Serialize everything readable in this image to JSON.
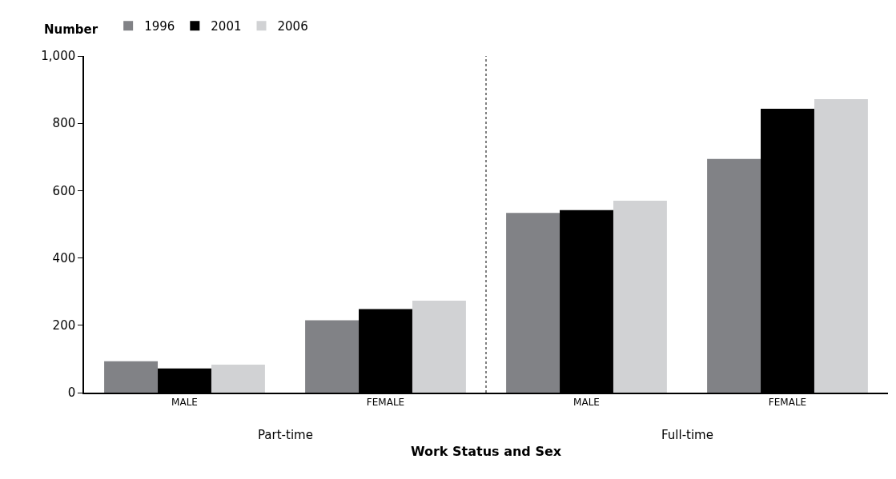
{
  "chart_data": {
    "type": "bar",
    "ylabel": "Number",
    "xlabel": "Work Status and Sex",
    "categories": [
      "MALE",
      "FEMALE",
      "MALE",
      "FEMALE"
    ],
    "series": [
      {
        "name": "1996",
        "color": "#818286",
        "values": [
          93,
          215,
          534,
          694
        ]
      },
      {
        "name": "2001",
        "color": "#000000",
        "values": [
          72,
          248,
          542,
          843
        ]
      },
      {
        "name": "2006",
        "color": "#d1d2d4",
        "values": [
          83,
          273,
          570,
          872
        ]
      }
    ],
    "ylim": [
      0,
      1000
    ],
    "yticks": [
      0,
      200,
      400,
      600,
      800,
      {
        "value": 1000,
        "label": "1,000"
      }
    ],
    "annotations": [
      "Part-time",
      "Full-time"
    ],
    "legend": "top left"
  }
}
